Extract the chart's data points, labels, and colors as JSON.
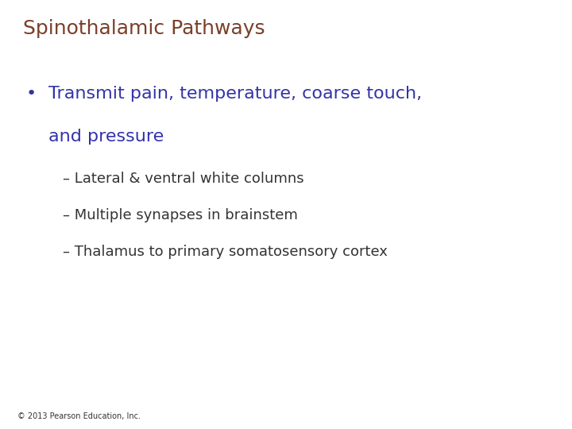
{
  "title": "Spinothalamic Pathways",
  "title_color": "#7B3F2A",
  "title_fontsize": 18,
  "title_bold": false,
  "bullet_text_line1": "Transmit pain, temperature, coarse touch,",
  "bullet_text_line2": "and pressure",
  "bullet_color": "#3333AA",
  "bullet_fontsize": 16,
  "sub_bullets": [
    "– Lateral & ventral white columns",
    "– Multiple synapses in brainstem",
    "– Thalamus to primary somatosensory cortex"
  ],
  "sub_bullet_color": "#333333",
  "sub_bullet_fontsize": 13,
  "background_color": "#FFFFFF",
  "footer_text": "© 2013 Pearson Education, Inc.",
  "footer_fontsize": 7,
  "footer_color": "#333333"
}
